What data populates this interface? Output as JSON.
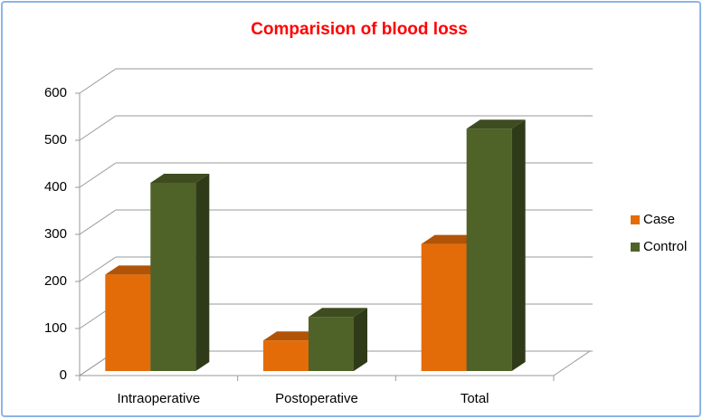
{
  "chart_data": {
    "type": "bar3d",
    "title": "Comparision  of  blood loss",
    "categories": [
      "Intraoperative",
      "Postoperative",
      "Total"
    ],
    "series": [
      {
        "name": "Case",
        "color": "#e36c09",
        "values": [
          205,
          65,
          270
        ]
      },
      {
        "name": "Control",
        "color": "#4f6228",
        "values": [
          400,
          115,
          515
        ]
      }
    ],
    "ylim": [
      0,
      600
    ],
    "yticks": [
      0,
      100,
      200,
      300,
      400,
      500,
      600
    ],
    "grid": true,
    "legend": "right"
  }
}
